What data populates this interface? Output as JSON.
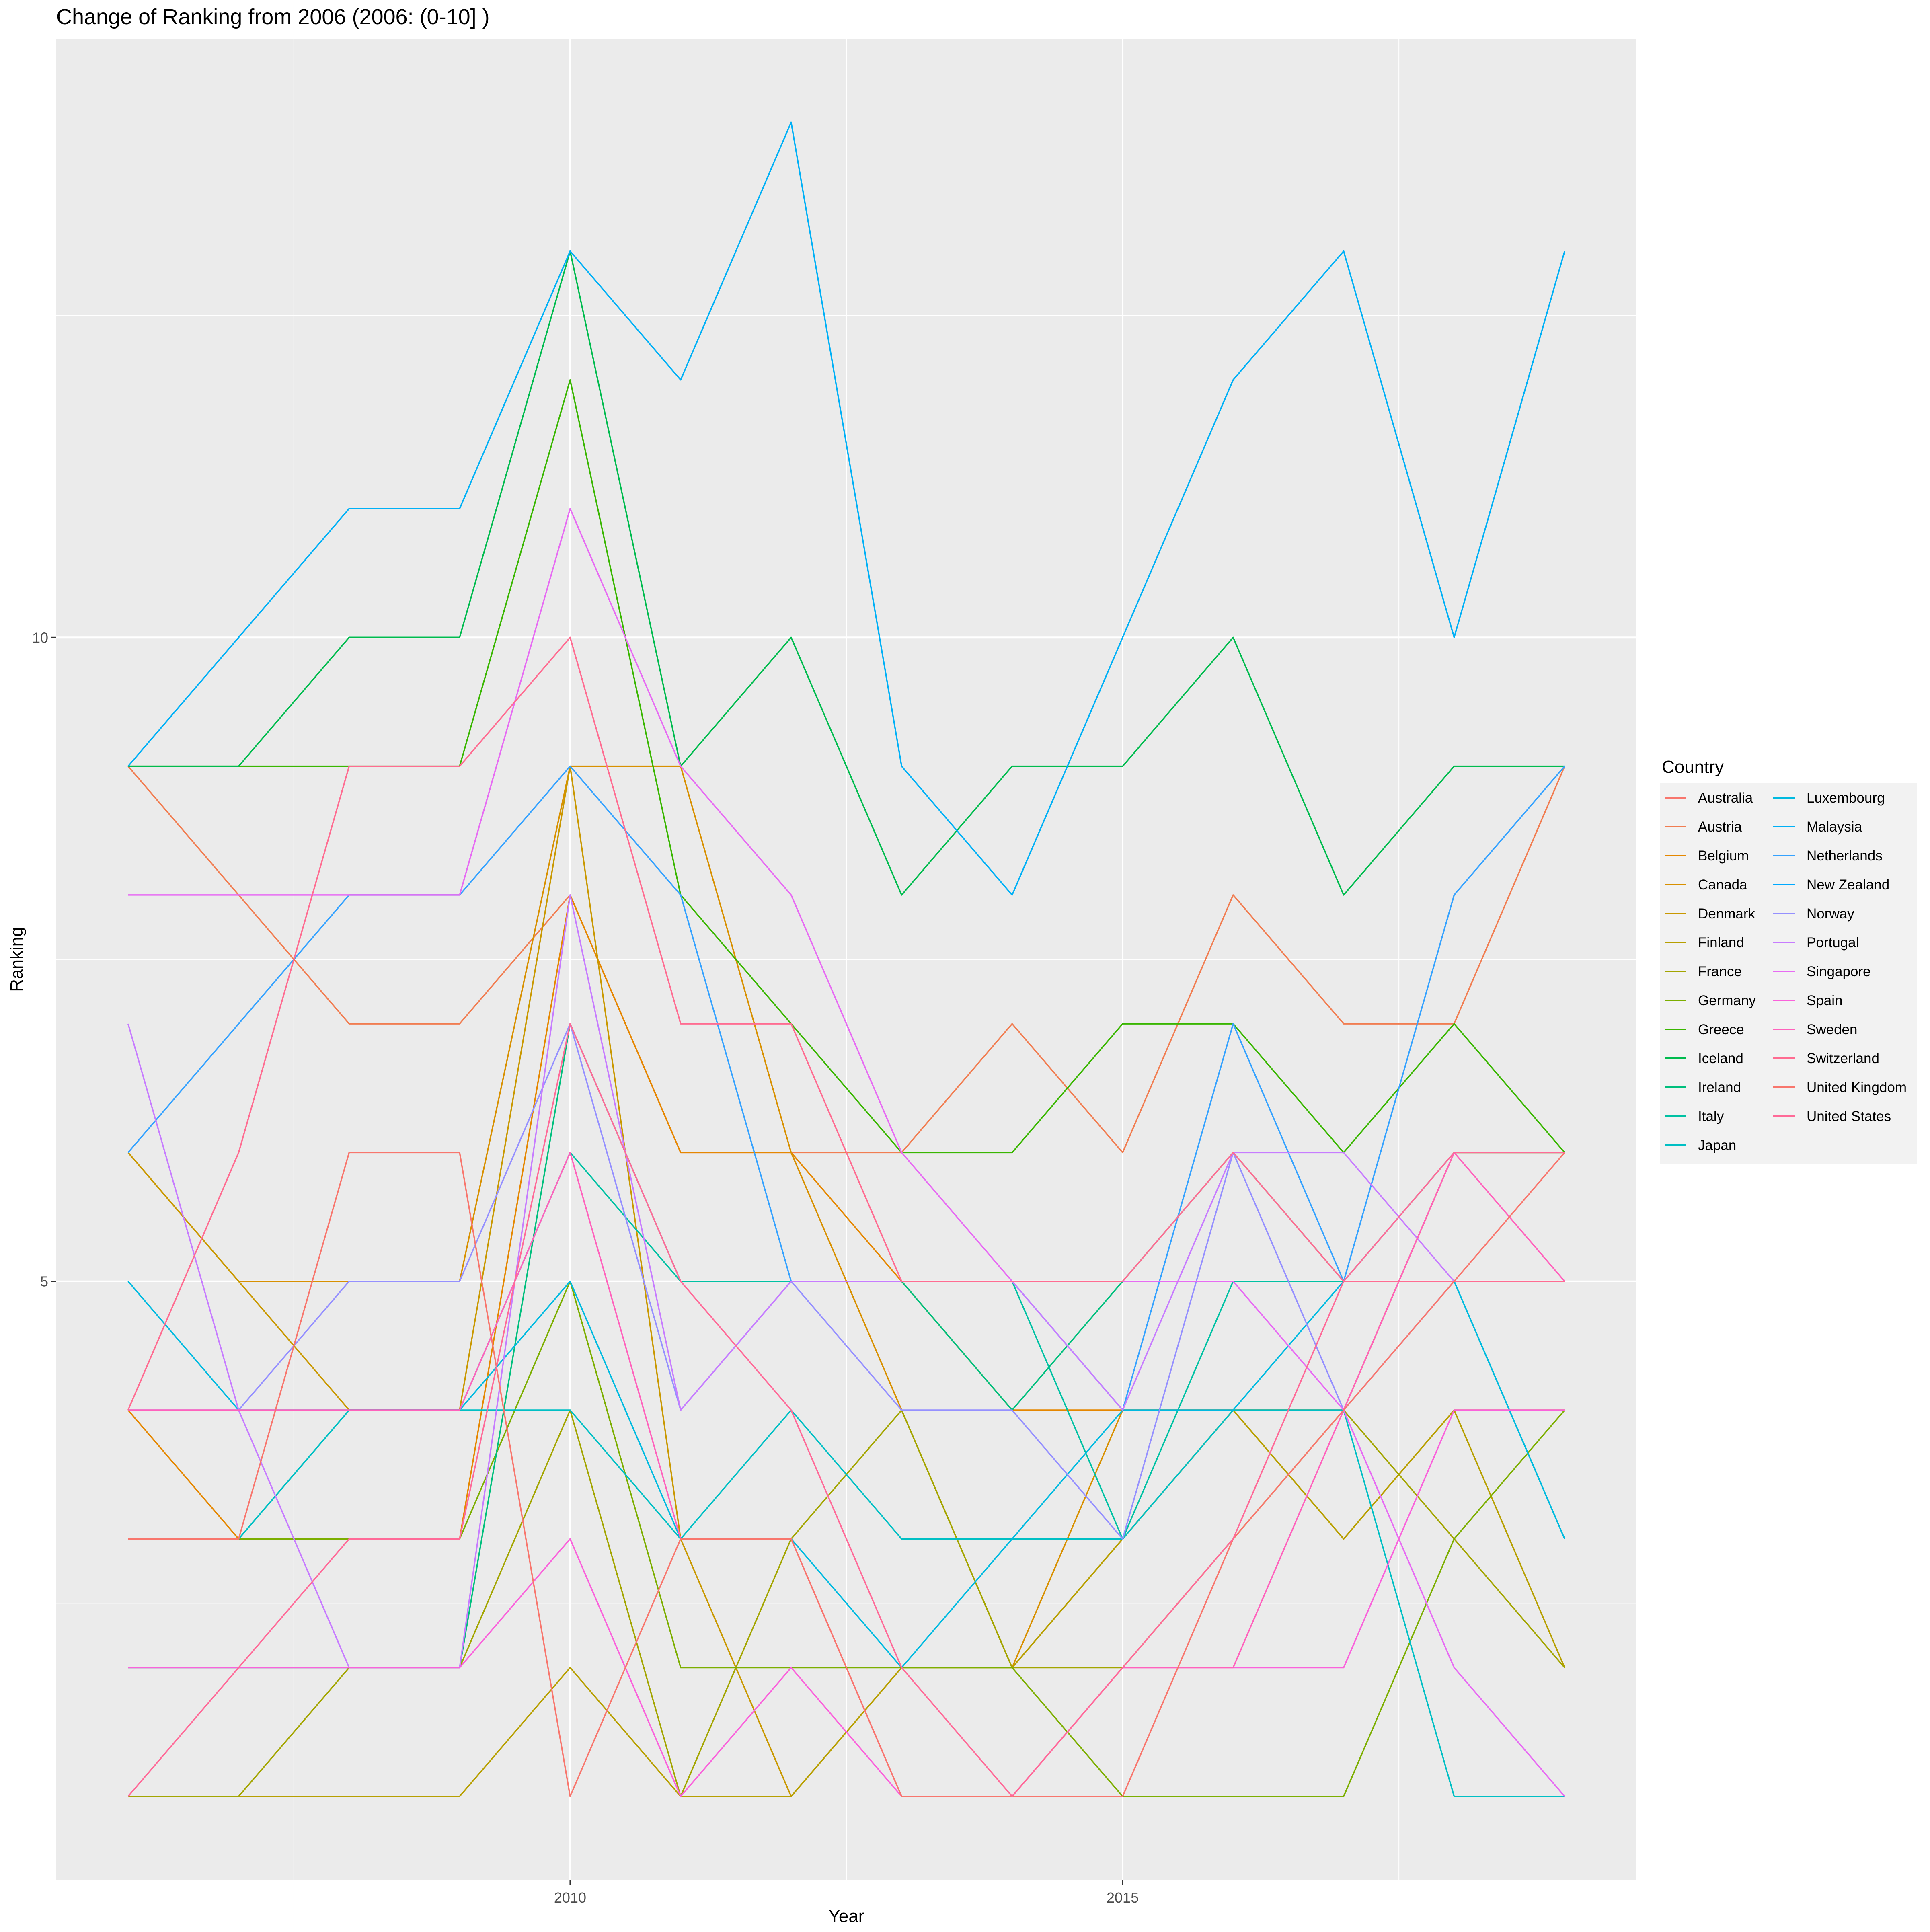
{
  "chart_data": {
    "type": "line",
    "title": "Change of Ranking from 2006 (2006: (0-10] )",
    "xlabel": "Year",
    "ylabel": "Ranking",
    "x": [
      2006,
      2007,
      2008,
      2009,
      2010,
      2011,
      2012,
      2013,
      2014,
      2015,
      2016,
      2017,
      2018,
      2019
    ],
    "xlim": [
      2005.35,
      2019.65
    ],
    "ylim": [
      0.35,
      14.65
    ],
    "x_ticks": [
      2010,
      2015
    ],
    "y_ticks": [
      5,
      10
    ],
    "grid": true,
    "legend_title": "Country",
    "legend_position": "right",
    "series": [
      {
        "name": "Australia",
        "color": "#F8766D",
        "values": [
          9,
          null,
          null,
          null,
          null,
          null,
          null,
          null,
          null,
          null,
          null,
          null,
          null,
          null
        ]
      },
      {
        "name": "Austria",
        "color": "#F17D51",
        "values": [
          9,
          8,
          7,
          7,
          8,
          6,
          6,
          6,
          7,
          6,
          8,
          7,
          7,
          9
        ]
      },
      {
        "name": "Belgium",
        "color": "#E58700",
        "values": [
          4,
          3,
          3,
          3,
          8,
          6,
          6,
          5,
          4,
          4,
          4,
          4,
          6,
          6
        ]
      },
      {
        "name": "Canada",
        "color": "#D89000",
        "values": [
          6,
          5,
          5,
          5,
          9,
          9,
          6,
          4,
          2,
          4,
          4,
          4,
          6,
          6
        ]
      },
      {
        "name": "Denmark",
        "color": "#C99800",
        "values": [
          6,
          5,
          4,
          4,
          9,
          3,
          1,
          2,
          2,
          3,
          4,
          3,
          4,
          4
        ]
      },
      {
        "name": "Finland",
        "color": "#B79F00",
        "values": [
          1,
          1,
          1,
          1,
          2,
          1,
          1,
          2,
          2,
          3,
          4,
          3,
          4,
          2
        ]
      },
      {
        "name": "France",
        "color": "#A3A500",
        "values": [
          1,
          1,
          2,
          2,
          4,
          1,
          3,
          4,
          2,
          2,
          3,
          4,
          3,
          2
        ]
      },
      {
        "name": "Germany",
        "color": "#7CAE00",
        "values": [
          3,
          3,
          3,
          3,
          5,
          2,
          2,
          2,
          2,
          1,
          1,
          1,
          3,
          4
        ]
      },
      {
        "name": "Greece",
        "color": "#39B600",
        "values": [
          9,
          9,
          9,
          9,
          12,
          8,
          7,
          6,
          6,
          7,
          7,
          6,
          7,
          6
        ]
      },
      {
        "name": "Iceland",
        "color": "#00BB4E",
        "values": [
          9,
          9,
          10,
          10,
          13,
          9,
          10,
          8,
          9,
          9,
          10,
          8,
          9,
          9
        ]
      },
      {
        "name": "Ireland",
        "color": "#00BF7D",
        "values": [
          2,
          2,
          2,
          2,
          7,
          5,
          5,
          5,
          4,
          5,
          6,
          5,
          6,
          6
        ]
      },
      {
        "name": "Italy",
        "color": "#00C1A3",
        "values": [
          3,
          3,
          4,
          4,
          6,
          5,
          5,
          5,
          5,
          3,
          5,
          5,
          5,
          3
        ]
      },
      {
        "name": "Japan",
        "color": "#00BFC4",
        "values": [
          3,
          3,
          4,
          4,
          4,
          3,
          4,
          3,
          3,
          3,
          4,
          4,
          1,
          1
        ]
      },
      {
        "name": "Luxembourg",
        "color": "#00BAE0",
        "values": [
          5,
          4,
          4,
          4,
          5,
          3,
          3,
          2,
          3,
          4,
          4,
          5,
          5,
          3
        ]
      },
      {
        "name": "Malaysia",
        "color": "#00B0F6",
        "values": [
          9,
          10,
          11,
          11,
          13,
          12,
          14,
          9,
          8,
          10,
          12,
          13,
          10,
          13
        ]
      },
      {
        "name": "Netherlands",
        "color": "#35A2FF",
        "values": [
          6,
          7,
          8,
          8,
          9,
          8,
          5,
          5,
          5,
          4,
          7,
          5,
          8,
          9
        ]
      },
      {
        "name": "New Zealand",
        "color": "#00A9FF",
        "values": [
          null,
          null,
          null,
          null,
          null,
          null,
          null,
          null,
          null,
          null,
          null,
          null,
          null,
          null
        ]
      },
      {
        "name": "Norway",
        "color": "#9590FF",
        "values": [
          4,
          4,
          5,
          5,
          7,
          4,
          5,
          4,
          4,
          3,
          6,
          4,
          5,
          5
        ]
      },
      {
        "name": "Portugal",
        "color": "#C77CFF",
        "values": [
          7,
          4,
          2,
          2,
          8,
          4,
          5,
          5,
          5,
          4,
          6,
          6,
          5,
          5
        ]
      },
      {
        "name": "Singapore",
        "color": "#E76BF3",
        "values": [
          8,
          8,
          8,
          8,
          11,
          9,
          8,
          6,
          5,
          5,
          5,
          4,
          2,
          1
        ]
      },
      {
        "name": "Spain",
        "color": "#FA62DB",
        "values": [
          2,
          2,
          2,
          2,
          3,
          1,
          2,
          1,
          1,
          2,
          2,
          2,
          4,
          4
        ]
      },
      {
        "name": "Sweden",
        "color": "#FF62BC",
        "values": [
          4,
          4,
          4,
          4,
          6,
          3,
          3,
          1,
          1,
          2,
          2,
          4,
          6,
          5
        ]
      },
      {
        "name": "Switzerland",
        "color": "#FF6C91",
        "values": [
          4,
          6,
          9,
          9,
          10,
          7,
          7,
          5,
          5,
          5,
          6,
          5,
          5,
          5
        ]
      },
      {
        "name": "United Kingdom",
        "color": "#F8766D",
        "values": [
          3,
          3,
          6,
          6,
          1,
          3,
          3,
          1,
          1,
          1,
          3,
          4,
          5,
          6
        ]
      },
      {
        "name": "United States",
        "color": "#FF6A98",
        "values": [
          1,
          2,
          3,
          3,
          7,
          5,
          4,
          2,
          1,
          2,
          3,
          5,
          6,
          6
        ]
      }
    ]
  }
}
